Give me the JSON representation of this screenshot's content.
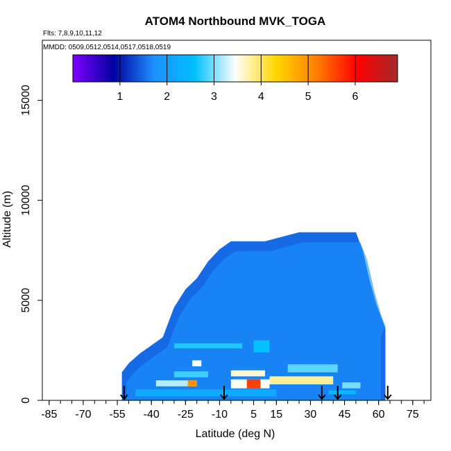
{
  "chart_data": {
    "type": "heatmap",
    "title": "ATOM4 Northbound MVK_TOGA",
    "subtitle_flights": "Flts: 7,8,9,10,11,12",
    "subtitle_dates": "MMDD: 0509,0512,0514,0517,0518,0519",
    "xlabel": "Latitude (deg N)",
    "ylabel": "Altitude (m)",
    "xlim": [
      -88,
      83
    ],
    "ylim": [
      0,
      18000
    ],
    "x_ticks": [
      -85,
      -70,
      -55,
      -40,
      -25,
      -10,
      5,
      15,
      30,
      45,
      60,
      75
    ],
    "y_ticks": [
      0,
      5000,
      10000,
      15000
    ],
    "colorbar": {
      "ticks": [
        1,
        2,
        3,
        4,
        5,
        6
      ],
      "range": [
        0,
        6.9
      ],
      "colors": [
        "#7f00ff",
        "#0000a0",
        "#1e90ff",
        "#00bfff",
        "#ffffff",
        "#ffd700",
        "#ff7f00",
        "#ff0000",
        "#a52a2a"
      ]
    },
    "profile_top": [
      {
        "lat": -53,
        "alt": 1400
      },
      {
        "lat": -50,
        "alt": 1850
      },
      {
        "lat": -45,
        "alt": 2350
      },
      {
        "lat": -40,
        "alt": 2750
      },
      {
        "lat": -35,
        "alt": 3150
      },
      {
        "lat": -30,
        "alt": 4650
      },
      {
        "lat": -25,
        "alt": 5550
      },
      {
        "lat": -20,
        "alt": 6100
      },
      {
        "lat": -15,
        "alt": 6950
      },
      {
        "lat": -10,
        "alt": 7550
      },
      {
        "lat": -5,
        "alt": 7950
      },
      {
        "lat": 10,
        "alt": 7950
      },
      {
        "lat": 25,
        "alt": 8400
      },
      {
        "lat": 50,
        "alt": 8400
      },
      {
        "lat": 53,
        "alt": 7500
      },
      {
        "lat": 56,
        "alt": 6000
      },
      {
        "lat": 59,
        "alt": 4800
      },
      {
        "lat": 61,
        "alt": 4200
      },
      {
        "lat": 63,
        "alt": 3600
      },
      {
        "lat": 63,
        "alt": 0
      }
    ],
    "highlights": [
      {
        "lat0": -47,
        "lat1": 15,
        "alt0": 200,
        "alt1": 550,
        "value": 2.2
      },
      {
        "lat0": -38,
        "lat1": -20,
        "alt0": 700,
        "alt1": 1000,
        "value": 3.2
      },
      {
        "lat0": -24,
        "lat1": -20,
        "alt0": 700,
        "alt1": 1000,
        "value": 5.0
      },
      {
        "lat0": -5,
        "lat1": 12,
        "alt0": 600,
        "alt1": 1050,
        "value": 3.5
      },
      {
        "lat0": 2,
        "lat1": 8,
        "alt0": 600,
        "alt1": 1050,
        "value": 5.6
      },
      {
        "lat0": 12,
        "lat1": 40,
        "alt0": 800,
        "alt1": 1200,
        "value": 3.8
      },
      {
        "lat0": -30,
        "lat1": -15,
        "alt0": 1150,
        "alt1": 1450,
        "value": 2.8
      },
      {
        "lat0": -5,
        "lat1": 10,
        "alt0": 1200,
        "alt1": 1500,
        "value": 3.6
      },
      {
        "lat0": 20,
        "lat1": 42,
        "alt0": 1400,
        "alt1": 1800,
        "value": 2.9
      },
      {
        "lat0": -22,
        "lat1": -18,
        "alt0": 1700,
        "alt1": 2000,
        "value": 3.5
      },
      {
        "lat0": -30,
        "lat1": 0,
        "alt0": 2600,
        "alt1": 2850,
        "value": 2.7
      },
      {
        "lat0": 5,
        "lat1": 12,
        "alt0": 2400,
        "alt1": 3000,
        "value": 2.6
      },
      {
        "lat0": 44,
        "lat1": 52,
        "alt0": 600,
        "alt1": 900,
        "value": 3.0
      },
      {
        "lat0": 38,
        "lat1": 50,
        "alt0": 300,
        "alt1": 500,
        "value": 2.5
      }
    ],
    "arrows_lat": [
      -52,
      -8,
      35,
      42,
      64
    ]
  }
}
